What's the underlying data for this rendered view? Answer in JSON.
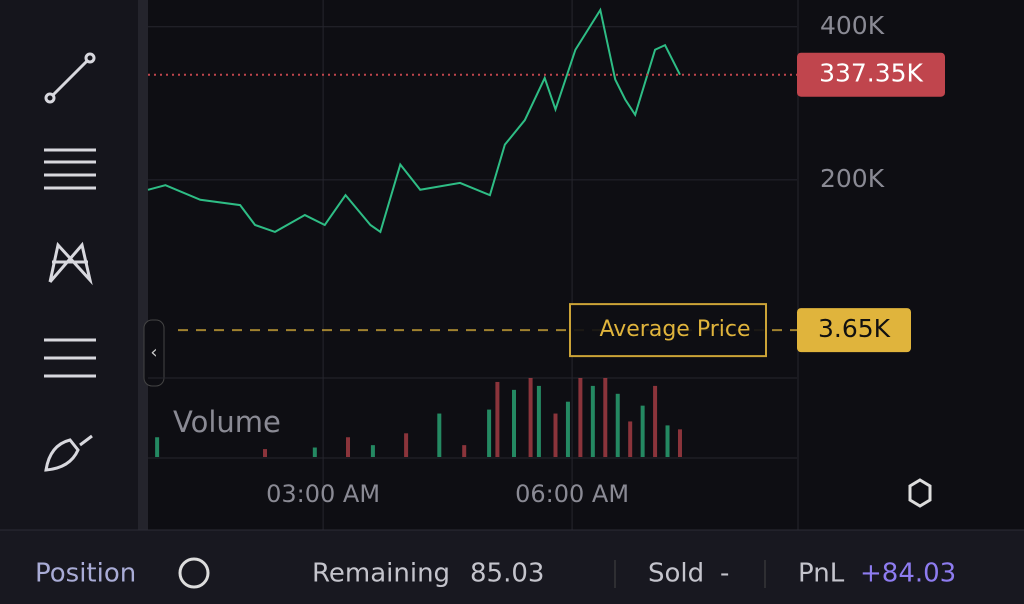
{
  "chart_data": {
    "type": "line",
    "x": [
      0.89,
      1.1,
      1.52,
      2.0,
      2.18,
      2.42,
      2.78,
      3.02,
      3.27,
      3.57,
      3.69,
      3.93,
      4.17,
      4.65,
      5.01,
      5.19,
      5.43,
      5.67,
      5.8,
      6.04,
      6.34,
      6.52,
      6.64,
      6.76,
      7.0,
      7.12,
      7.3
    ],
    "values": [
      187,
      193,
      174,
      167,
      141,
      132,
      154,
      141,
      180,
      141,
      132,
      220,
      187,
      196,
      180,
      246,
      278,
      333,
      292,
      370,
      422,
      331,
      305,
      285,
      370,
      376,
      337.35
    ],
    "color": "#2ebd85",
    "xlim": [
      0.89,
      8.71
    ],
    "xticks": [
      {
        "value": 3,
        "label": "03:00 AM"
      },
      {
        "value": 6,
        "label": "06:00 AM"
      }
    ],
    "ylim": [
      -55,
      435
    ],
    "yticks": [
      {
        "value": 400,
        "label": "400K"
      },
      {
        "value": 200,
        "label": "200K"
      }
    ],
    "current_price": {
      "value": 337.35,
      "label": "337.35K",
      "color": "#c0454d"
    },
    "average_price": {
      "name": "Average Price",
      "value": 3.65,
      "label": "3.65K",
      "color": "#e0b43c"
    },
    "volume": {
      "name": "Volume",
      "x": [
        1.0,
        2.3,
        2.9,
        3.3,
        3.6,
        4.0,
        4.4,
        4.7,
        5.0,
        5.1,
        5.3,
        5.5,
        5.6,
        5.8,
        5.95,
        6.1,
        6.25,
        6.4,
        6.55,
        6.7,
        6.85,
        7.0,
        7.15,
        7.3
      ],
      "values": [
        25,
        10,
        12,
        25,
        15,
        30,
        55,
        15,
        60,
        95,
        85,
        100,
        90,
        55,
        70,
        100,
        90,
        100,
        80,
        45,
        65,
        90,
        40,
        35
      ],
      "ylim": [
        0,
        100
      ]
    }
  },
  "bottom_bar": {
    "position": "Position",
    "remaining_label": "Remaining",
    "remaining_value": "85.03",
    "sold_label": "Sold",
    "sold_value": "-",
    "pnl_label": "PnL",
    "pnl_value": "+84.03"
  }
}
